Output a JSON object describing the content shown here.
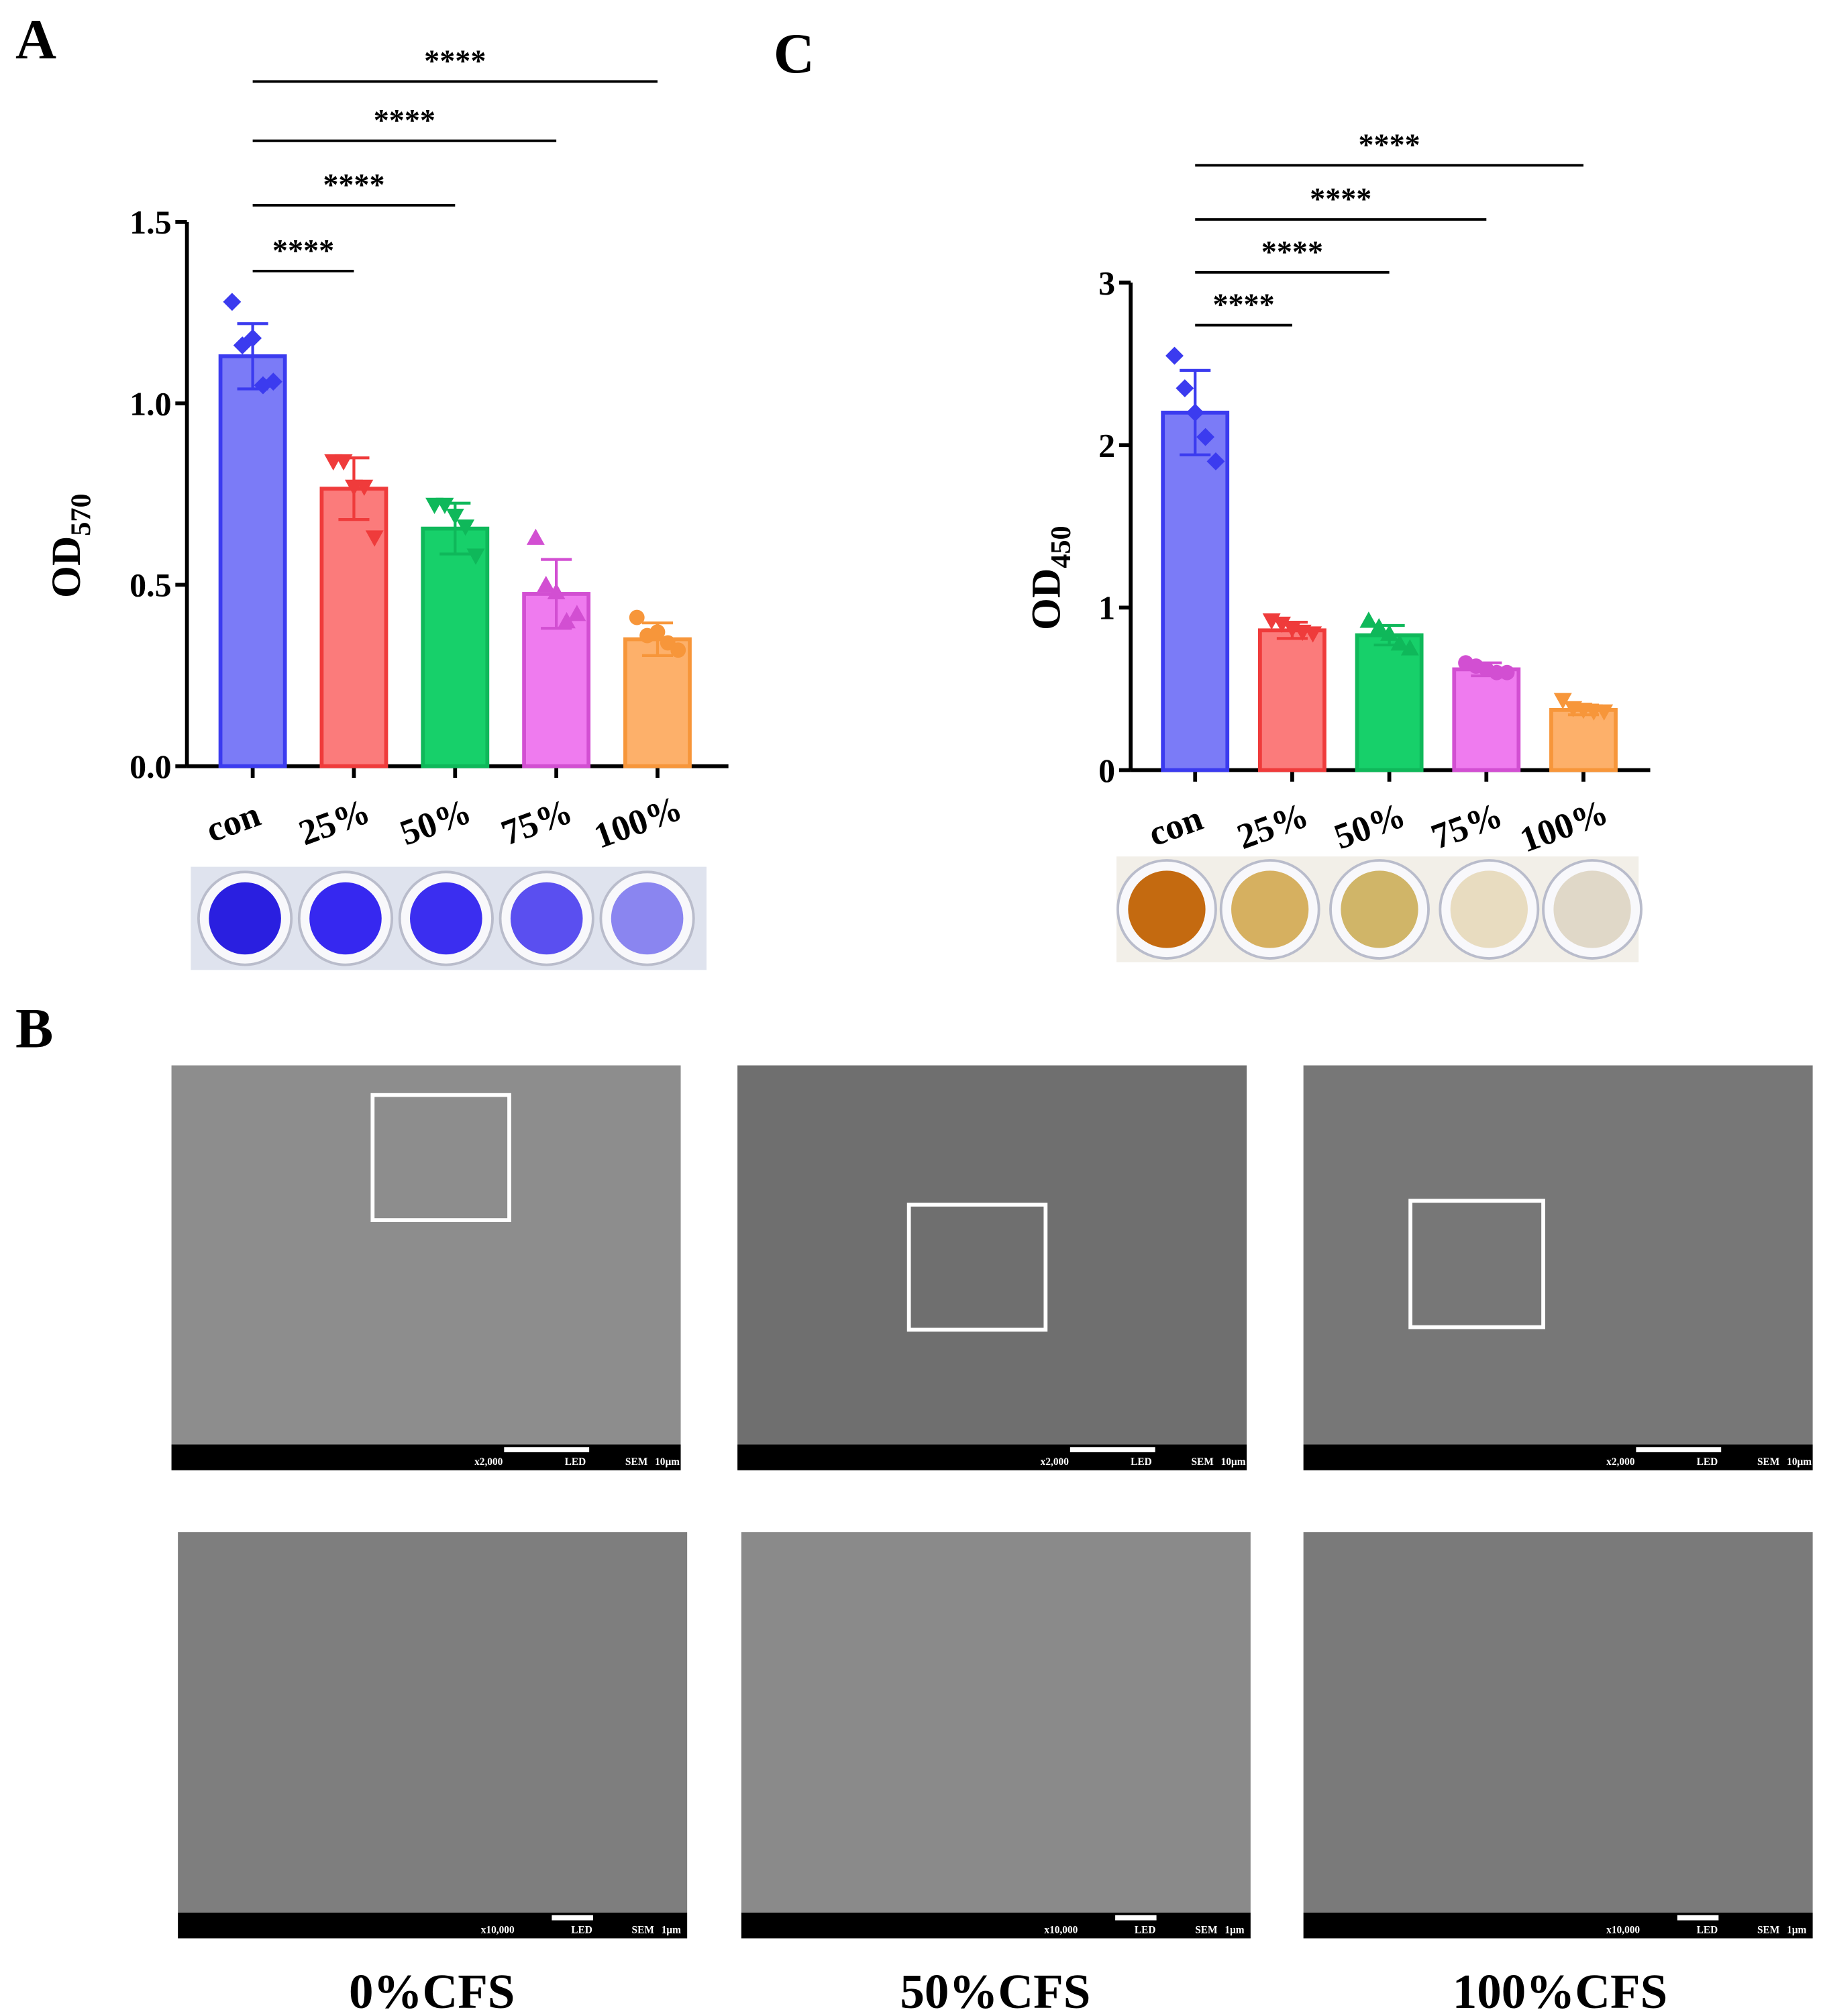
{
  "panels": {
    "a": "A",
    "b": "B",
    "c": "C"
  },
  "chart_data": [
    {
      "type": "bar",
      "y_label": "OD",
      "y_label_sub": "570",
      "categories": [
        "con",
        "25%",
        "50%",
        "75%",
        "100%"
      ],
      "values": [
        1.13,
        0.765,
        0.655,
        0.475,
        0.35
      ],
      "errors": [
        0.09,
        0.085,
        0.07,
        0.095,
        0.045
      ],
      "points": [
        [
          1.28,
          1.16,
          1.18,
          1.05,
          1.06
        ],
        [
          0.84,
          0.84,
          0.77,
          0.77,
          0.63
        ],
        [
          0.72,
          0.72,
          0.69,
          0.66,
          0.58
        ],
        [
          0.63,
          0.5,
          0.48,
          0.4,
          0.42
        ],
        [
          0.41,
          0.36,
          0.37,
          0.34,
          0.32
        ]
      ],
      "colors": [
        "#7b7bf7",
        "#fb7b7b",
        "#17d06a",
        "#ef7bef",
        "#fdb06a"
      ],
      "stroke_colors": [
        "#3b3bef",
        "#ef3b3b",
        "#0fb85a",
        "#d24fd2",
        "#f7963a"
      ],
      "markers": [
        "diamond",
        "triangle-down",
        "triangle-down",
        "triangle-up",
        "circle"
      ],
      "ylim": [
        0,
        1.5
      ],
      "yticks": [
        {
          "value": 0,
          "label": "0.0"
        },
        0.5,
        {
          "value": 1,
          "label": "1.0"
        },
        1.5
      ],
      "annotations": [
        "****",
        "****",
        "****",
        "****"
      ]
    },
    {
      "type": "bar",
      "y_label": "OD",
      "y_label_sub": "450",
      "categories": [
        "con",
        "25%",
        "50%",
        "75%",
        "100%"
      ],
      "values": [
        2.2,
        0.86,
        0.83,
        0.62,
        0.37
      ],
      "errors": [
        0.26,
        0.05,
        0.06,
        0.04,
        0.03
      ],
      "points": [
        [
          2.55,
          2.35,
          2.2,
          2.05,
          1.9
        ],
        [
          0.92,
          0.9,
          0.87,
          0.85,
          0.84
        ],
        [
          0.92,
          0.88,
          0.84,
          0.78,
          0.75
        ],
        [
          0.66,
          0.64,
          0.62,
          0.6,
          0.6
        ],
        [
          0.43,
          0.38,
          0.37,
          0.36,
          0.36
        ]
      ],
      "colors": [
        "#7b7bf7",
        "#fb7b7b",
        "#17d06a",
        "#ef7bef",
        "#fdb06a"
      ],
      "stroke_colors": [
        "#3b3bef",
        "#ef3b3b",
        "#0fb85a",
        "#d24fd2",
        "#f7963a"
      ],
      "markers": [
        "diamond",
        "triangle-down",
        "triangle-up",
        "circle",
        "triangle-down"
      ],
      "ylim": [
        0,
        3
      ],
      "yticks": [
        0,
        1,
        2,
        3
      ],
      "annotations": [
        "****",
        "****",
        "****",
        "****"
      ]
    }
  ],
  "sem": {
    "captions": [
      "0%CFS",
      "50%CFS",
      "100%CFS"
    ],
    "rows": [
      {
        "magnification": "x2,000",
        "detector": "LED",
        "mode": "SEM",
        "scale": "10μm"
      },
      {
        "magnification": "x10,000",
        "detector": "LED",
        "mode": "SEM",
        "scale": "1μm"
      }
    ]
  }
}
